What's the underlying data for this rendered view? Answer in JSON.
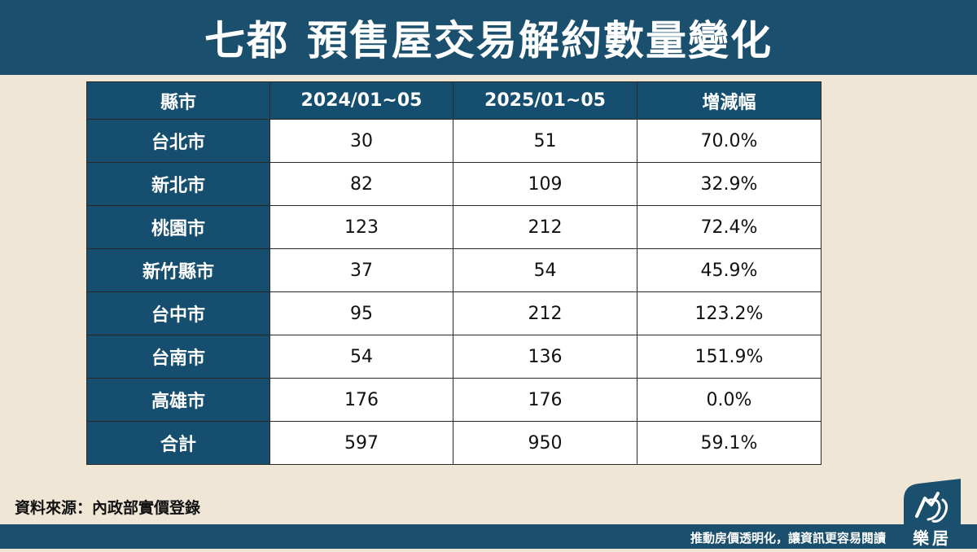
{
  "title": {
    "part1": "七都",
    "part2": "預售屋交易解約數量變化"
  },
  "table": {
    "headers": [
      "縣市",
      "2024/01~05",
      "2025/01~05",
      "增減幅"
    ],
    "rows": [
      {
        "city": "台北市",
        "y2024": "30",
        "y2025": "51",
        "change": "70.0%"
      },
      {
        "city": "新北市",
        "y2024": "82",
        "y2025": "109",
        "change": "32.9%"
      },
      {
        "city": "桃園市",
        "y2024": "123",
        "y2025": "212",
        "change": "72.4%"
      },
      {
        "city": "新竹縣市",
        "y2024": "37",
        "y2025": "54",
        "change": "45.9%"
      },
      {
        "city": "台中市",
        "y2024": "95",
        "y2025": "212",
        "change": "123.2%"
      },
      {
        "city": "台南市",
        "y2024": "54",
        "y2025": "136",
        "change": "151.9%"
      },
      {
        "city": "高雄市",
        "y2024": "176",
        "y2025": "176",
        "change": "0.0%"
      },
      {
        "city": "合計",
        "y2024": "597",
        "y2025": "950",
        "change": "59.1%"
      }
    ]
  },
  "source": "資料來源：內政部實價登錄",
  "footer": {
    "slogan": "推動房價透明化，讓資訊更容易閱讀",
    "logo_text": "樂居",
    "logo_icon": "house-script-logo-icon"
  },
  "colors": {
    "navy": "#1a4f6e",
    "header_cell": "#154e6e",
    "background": "#efe6d6"
  }
}
